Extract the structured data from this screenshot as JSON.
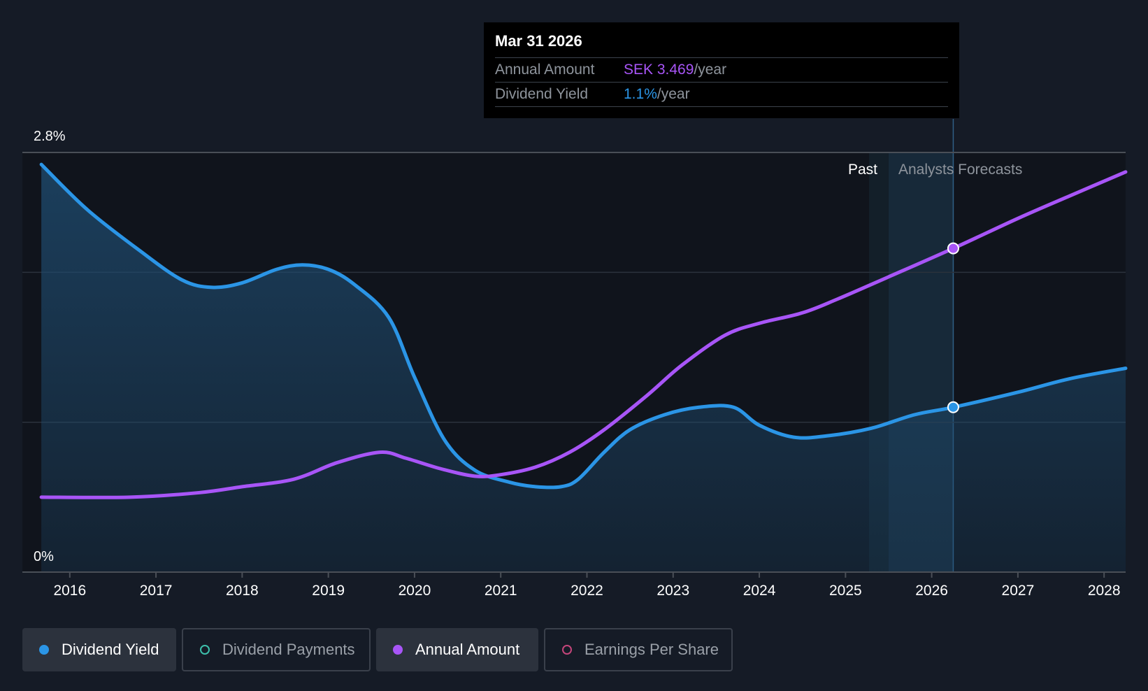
{
  "tooltip": {
    "date": "Mar 31 2026",
    "rows": [
      {
        "label": "Annual Amount",
        "value": "SEK 3.469",
        "unit": "/year",
        "color": "#a855f7"
      },
      {
        "label": "Dividend Yield",
        "value": "1.1%",
        "unit": "/year",
        "color": "#2b95e6"
      }
    ]
  },
  "legend": [
    {
      "label": "Dividend Yield",
      "active": true,
      "color": "#2b95e6",
      "style": "filled"
    },
    {
      "label": "Dividend Payments",
      "active": false,
      "color": "#3dbfab",
      "style": "hollow"
    },
    {
      "label": "Annual Amount",
      "active": true,
      "color": "#a855f7",
      "style": "filled"
    },
    {
      "label": "Earnings Per Share",
      "active": false,
      "color": "#c4457a",
      "style": "hollow"
    }
  ],
  "chart_data": {
    "type": "line",
    "y_tick_labels": [
      "2.8%",
      "0%"
    ],
    "ylim": [
      0,
      2.8
    ],
    "xlim": [
      2015.45,
      2028.25
    ],
    "x_ticks": [
      2016,
      2017,
      2018,
      2019,
      2020,
      2021,
      2022,
      2023,
      2024,
      2025,
      2026,
      2027,
      2028
    ],
    "past_label": "Past",
    "forecast_label": "Analysts Forecasts",
    "forecast_start": 2025.5,
    "tooltip_x": 2026.25,
    "grid": true,
    "series": [
      {
        "name": "Dividend Yield",
        "color": "#2b95e6",
        "filled": true,
        "points": [
          [
            2015.67,
            2.72
          ],
          [
            2016.2,
            2.42
          ],
          [
            2016.8,
            2.15
          ],
          [
            2017.3,
            1.95
          ],
          [
            2017.65,
            1.9
          ],
          [
            2018.0,
            1.93
          ],
          [
            2018.4,
            2.02
          ],
          [
            2018.7,
            2.05
          ],
          [
            2019.0,
            2.02
          ],
          [
            2019.3,
            1.92
          ],
          [
            2019.7,
            1.7
          ],
          [
            2020.0,
            1.3
          ],
          [
            2020.35,
            0.88
          ],
          [
            2020.7,
            0.68
          ],
          [
            2021.1,
            0.6
          ],
          [
            2021.4,
            0.57
          ],
          [
            2021.7,
            0.57
          ],
          [
            2021.9,
            0.62
          ],
          [
            2022.2,
            0.8
          ],
          [
            2022.5,
            0.95
          ],
          [
            2022.9,
            1.05
          ],
          [
            2023.3,
            1.1
          ],
          [
            2023.7,
            1.1
          ],
          [
            2024.0,
            0.98
          ],
          [
            2024.4,
            0.9
          ],
          [
            2024.8,
            0.91
          ],
          [
            2025.3,
            0.96
          ],
          [
            2025.8,
            1.05
          ],
          [
            2026.25,
            1.1
          ],
          [
            2027.0,
            1.2
          ],
          [
            2027.6,
            1.29
          ],
          [
            2028.25,
            1.36
          ]
        ]
      },
      {
        "name": "Annual Amount",
        "color": "#a855f7",
        "filled": false,
        "points": [
          [
            2015.67,
            0.5
          ],
          [
            2016.7,
            0.5
          ],
          [
            2017.5,
            0.53
          ],
          [
            2018.0,
            0.57
          ],
          [
            2018.6,
            0.62
          ],
          [
            2019.1,
            0.73
          ],
          [
            2019.6,
            0.8
          ],
          [
            2019.9,
            0.76
          ],
          [
            2020.3,
            0.69
          ],
          [
            2020.7,
            0.64
          ],
          [
            2021.0,
            0.65
          ],
          [
            2021.4,
            0.7
          ],
          [
            2021.8,
            0.8
          ],
          [
            2022.2,
            0.95
          ],
          [
            2022.7,
            1.18
          ],
          [
            2023.1,
            1.38
          ],
          [
            2023.6,
            1.58
          ],
          [
            2024.0,
            1.66
          ],
          [
            2024.5,
            1.73
          ],
          [
            2024.9,
            1.82
          ],
          [
            2025.5,
            1.97
          ],
          [
            2026.25,
            2.16
          ],
          [
            2027.0,
            2.36
          ],
          [
            2027.6,
            2.51
          ],
          [
            2028.25,
            2.67
          ]
        ]
      }
    ]
  }
}
